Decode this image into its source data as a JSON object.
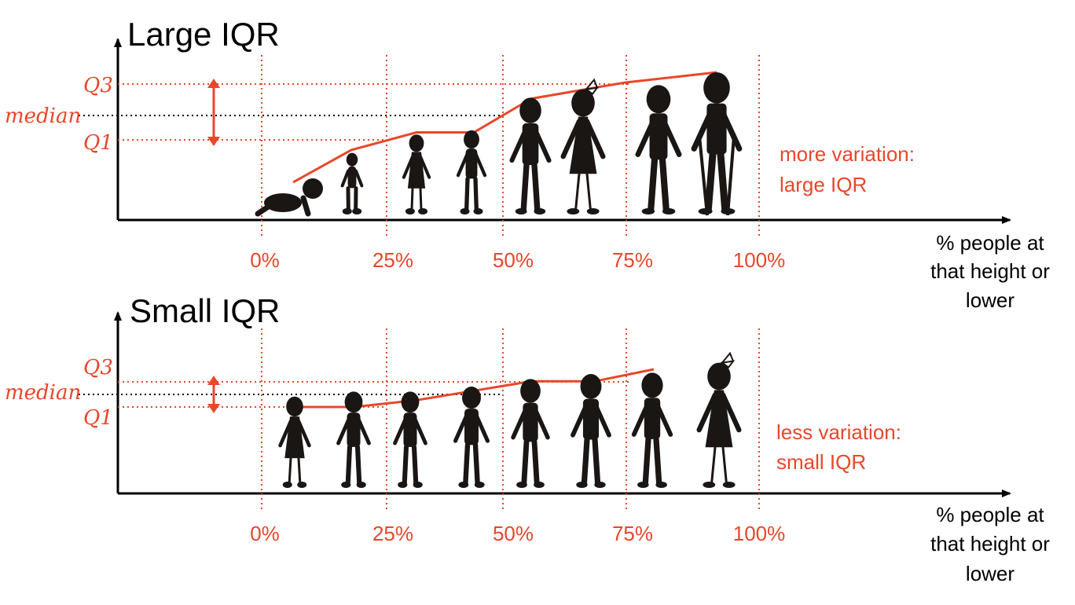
{
  "colors": {
    "accent": "#e8472a",
    "axis": "#000000",
    "figure": "#1a1614",
    "text": "#000000"
  },
  "panels": [
    {
      "id": "large",
      "title": "Large IQR",
      "annotation_line1": "more variation:",
      "annotation_line2": "large IQR",
      "quartile_labels": {
        "q3": "Q3",
        "median": "median",
        "q1": "Q1"
      },
      "percent_ticks": [
        "0%",
        "25%",
        "50%",
        "75%",
        "100%"
      ],
      "x_axis_label": [
        "% people at",
        "that height or",
        "lower"
      ],
      "cumulative_heights": [
        0.25,
        0.47,
        0.59,
        0.59,
        0.82,
        0.93,
        1.0
      ],
      "people": [
        {
          "kind": "crawling-baby",
          "height": 0.19,
          "pose": "baby"
        },
        {
          "kind": "child",
          "height": 0.43,
          "pose": "child"
        },
        {
          "kind": "girl",
          "height": 0.56,
          "pose": "girl"
        },
        {
          "kind": "child",
          "height": 0.59,
          "pose": "child"
        },
        {
          "kind": "adult",
          "height": 0.82,
          "pose": "adult"
        },
        {
          "kind": "woman",
          "height": 0.88,
          "pose": "woman"
        },
        {
          "kind": "adult",
          "height": 0.91,
          "pose": "adult"
        },
        {
          "kind": "stilt-walker",
          "height": 1.0,
          "pose": "stilts"
        }
      ]
    },
    {
      "id": "small",
      "title": "Small IQR",
      "annotation_line1": "less variation:",
      "annotation_line2": "small IQR",
      "quartile_labels": {
        "q3": "Q3",
        "median": "median",
        "q1": "Q1"
      },
      "percent_ticks": [
        "0%",
        "25%",
        "50%",
        "75%",
        "100%"
      ],
      "x_axis_label": [
        "% people at",
        "that height or",
        "lower"
      ],
      "cumulative_heights": [
        0.76,
        0.76,
        0.8,
        0.86,
        0.91,
        0.91,
        0.98
      ],
      "people": [
        {
          "kind": "girl",
          "height": 0.72,
          "pose": "girl"
        },
        {
          "kind": "child",
          "height": 0.76,
          "pose": "child"
        },
        {
          "kind": "child",
          "height": 0.76,
          "pose": "child"
        },
        {
          "kind": "child",
          "height": 0.8,
          "pose": "child"
        },
        {
          "kind": "adult",
          "height": 0.86,
          "pose": "adult"
        },
        {
          "kind": "adult",
          "height": 0.9,
          "pose": "adult"
        },
        {
          "kind": "adult",
          "height": 0.91,
          "pose": "adult"
        },
        {
          "kind": "woman",
          "height": 0.99,
          "pose": "woman"
        }
      ]
    }
  ]
}
